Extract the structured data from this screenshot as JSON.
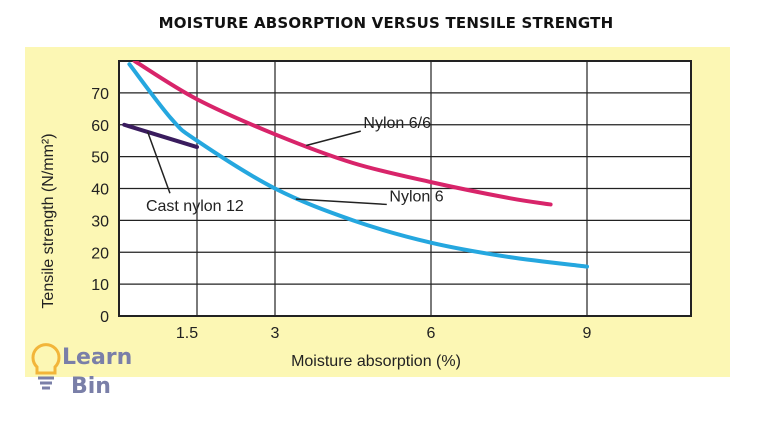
{
  "chart_data": {
    "type": "line",
    "title": "MOISTURE ABSORPTION VERSUS TENSILE STRENGTH",
    "xlabel": "Moisture absorption (%)",
    "ylabel": "Tensile strength (N/mm²)",
    "xlim": [
      0,
      11
    ],
    "ylim": [
      0,
      80
    ],
    "xticks": [
      1.5,
      3,
      6,
      9
    ],
    "xtick_labels": [
      "1.5",
      "3",
      "6",
      "9"
    ],
    "yticks": [
      0,
      10,
      20,
      30,
      40,
      50,
      60,
      70
    ],
    "ytick_labels": [
      "0",
      "10",
      "20",
      "30",
      "40",
      "50",
      "60",
      "70"
    ],
    "grid": true,
    "series": [
      {
        "name": "Nylon 6/6",
        "color": "#d8246a",
        "x": [
          0.3,
          1.5,
          3,
          4.5,
          6,
          7.5,
          8.3
        ],
        "y": [
          80,
          68,
          57,
          48,
          42,
          37,
          35
        ]
      },
      {
        "name": "Nylon 6",
        "color": "#25a7df",
        "x": [
          0.2,
          1,
          1.5,
          3,
          4.5,
          6,
          7.5,
          9
        ],
        "y": [
          79,
          62,
          55,
          40,
          30,
          23,
          18.5,
          15.5
        ]
      },
      {
        "name": "Cast nylon 12",
        "color": "#3a1c5e",
        "x": [
          0.1,
          1.5
        ],
        "y": [
          60,
          53
        ]
      }
    ],
    "annotations": [
      {
        "text": "Nylon 6/6",
        "series": "Nylon 6/6"
      },
      {
        "text": "Nylon 6",
        "series": "Nylon 6"
      },
      {
        "text": "Cast nylon 12",
        "series": "Cast nylon 12"
      }
    ]
  },
  "logo": {
    "line1": "Learn",
    "line2": "Bin",
    "color": "#7a7fa8",
    "bulb_color": "#f2b53a"
  }
}
